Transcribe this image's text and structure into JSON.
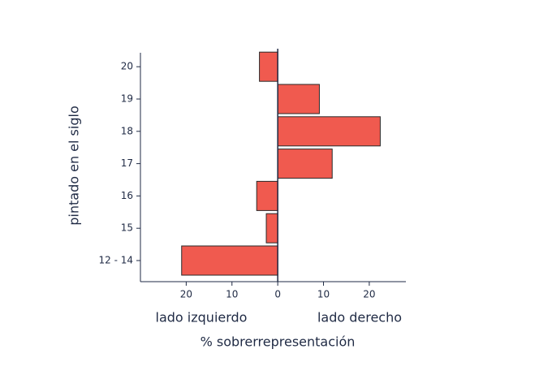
{
  "chart_data": {
    "type": "hbar",
    "categories": [
      "12 - 14",
      "15",
      "16",
      "17",
      "18",
      "19",
      "20"
    ],
    "values": [
      -21,
      -2.5,
      -4.6,
      11.9,
      22.4,
      9.1,
      -4
    ],
    "color": "#f05a4f",
    "xlim": [
      -30,
      28
    ],
    "xticks": [
      {
        "value": -20,
        "label": "20"
      },
      {
        "value": -10,
        "label": "10"
      },
      0,
      10,
      20
    ],
    "xlabel": "% sobrerrepresentación",
    "ylabel": "pintado en el siglo",
    "annotations": [
      "lado izquierdo",
      "lado derecho"
    ]
  }
}
